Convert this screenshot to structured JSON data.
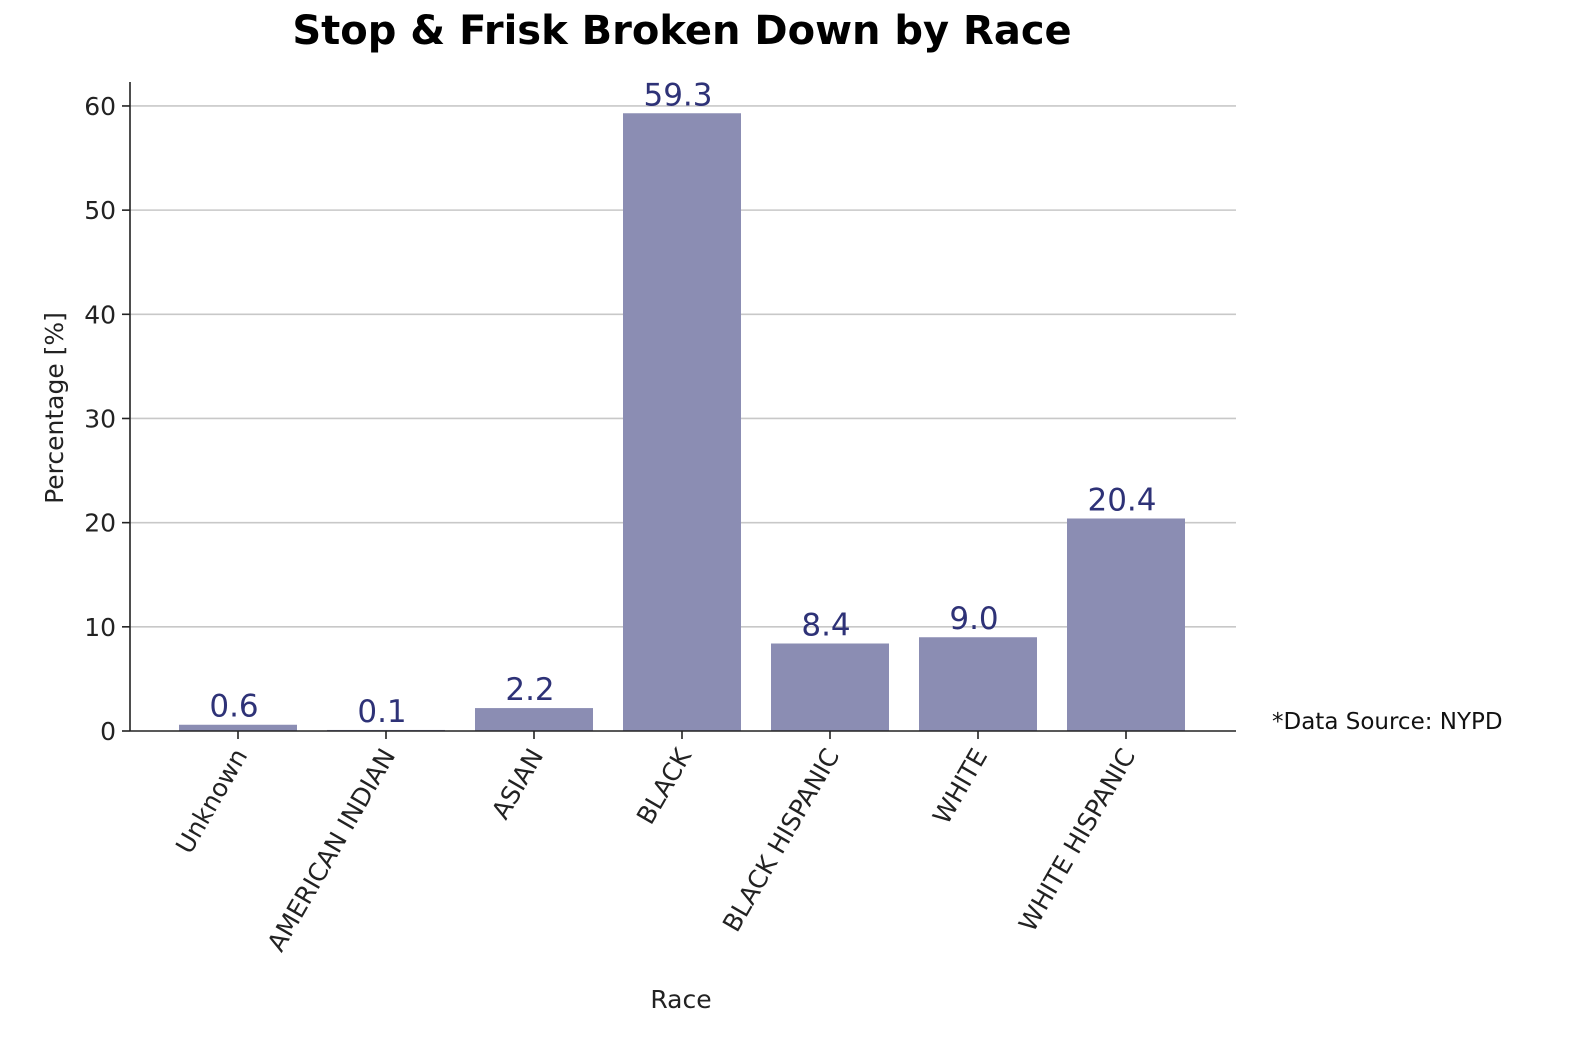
{
  "chart_data": {
    "type": "bar",
    "title": "Stop & Frisk Broken Down by Race",
    "xlabel": "Race",
    "ylabel": "Percentage [%]",
    "categories": [
      "Unknown",
      "AMERICAN INDIAN",
      "ASIAN",
      "BLACK",
      "BLACK HISPANIC",
      "WHITE",
      "WHITE HISPANIC"
    ],
    "values": [
      0.6,
      0.1,
      2.2,
      59.3,
      8.4,
      9.0,
      20.4
    ],
    "value_labels": [
      "0.6",
      "0.1",
      "2.2",
      "59.3",
      "8.4",
      "9.0",
      "20.4"
    ],
    "yticks": [
      0,
      10,
      20,
      30,
      40,
      50,
      60
    ],
    "ylim": [
      0,
      62.3
    ],
    "grid": "horizontal",
    "annotation": "*Data Source: NYPD",
    "colors": {
      "bar": "#8b8db3",
      "value_label": "#2e3277",
      "grid": "#c8c8c8",
      "axis": "#222222"
    }
  }
}
